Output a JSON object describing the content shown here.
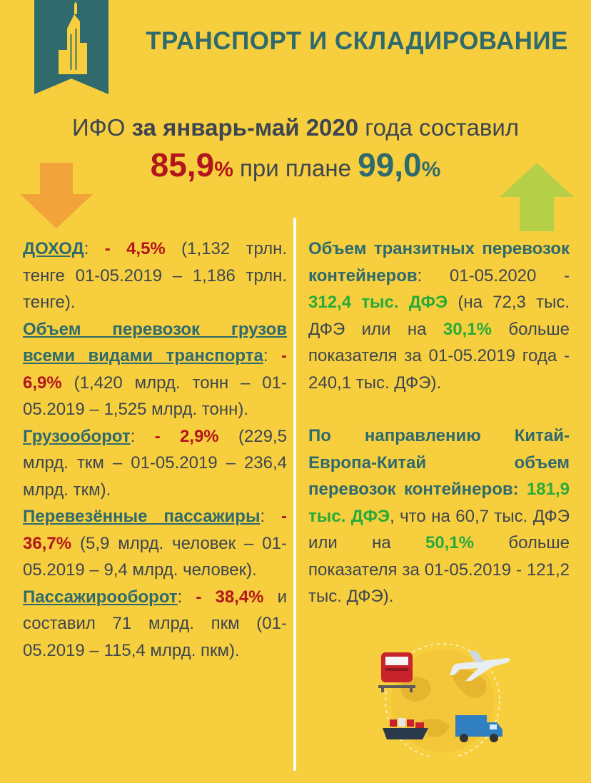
{
  "title": "ТРАНСПОРТ И СКЛАДИРОВАНИЕ",
  "headline": {
    "prefix": "ИФО ",
    "period": "за январь-май 2020",
    "suffix": " года составил",
    "actual_value": "85,9",
    "actual_unit": "%",
    "plan_text": " при плане ",
    "plan_value": "99,0",
    "plan_unit": "%"
  },
  "left": [
    {
      "label": "ДОХОД",
      "sep": ": ",
      "change": "- 4,5%",
      "rest": " (1,132 трлн. тенге 01-05.2019 – 1,186 трлн. тенге)."
    },
    {
      "label": "Объем перевозок грузов всеми видами транспорта",
      "sep": ": ",
      "change": "- 6,9%",
      "rest": " (1,420 млрд. тонн – 01-05.2019 – 1,525 млрд. тонн)."
    },
    {
      "label": "Грузооборот",
      "sep": ": ",
      "change": "- 2,9%",
      "rest": " (229,5 млрд. ткм – 01-05.2019 – 236,4 млрд. ткм)."
    },
    {
      "label": "Перевезённые пассажиры",
      "sep": ": ",
      "change": "- 36,7%",
      "rest": " (5,9 млрд. человек – 01-05.2019 – 9,4 млрд. человек)."
    },
    {
      "label": "Пассажирооборот",
      "sep": ": ",
      "change": "- 38,4%",
      "rest": " и составил 71 млрд. пкм (01-05.2019 – 115,4 млрд. пкм)."
    }
  ],
  "right": {
    "block1": {
      "label": "Объем транзитных перевозок контейнеров",
      "date_text": ": 01-05.2020 - ",
      "value": "312,4 тыс. ДФЭ",
      "mid": " (на 72,3 тыс. ДФЭ или на ",
      "pct": "30,1%",
      "rest": " больше показателя за 01-05.2019 года - 240,1 тыс. ДФЭ)."
    },
    "block2": {
      "label": "По направлению Китай-Европа-Китай объем перевозок контейнеров:",
      "value": " 181,9 тыс. ДФЭ",
      "mid": ", что на 60,7 тыс. ДФЭ или на ",
      "pct": "50,1%",
      "rest": " больше показателя за 01-05.2019 - 121,2 тыс. ДФЭ)."
    }
  },
  "colors": {
    "background": "#f7cf3e",
    "teal": "#2f6a6d",
    "red": "#b3151c",
    "green": "#2aaa3a",
    "orange": "#f2a33a",
    "lime": "#b5cf47"
  },
  "icons": [
    "building-icon",
    "down-arrow-icon",
    "up-arrow-icon",
    "train-icon",
    "airplane-icon",
    "ship-icon",
    "truck-icon",
    "globe-icon"
  ]
}
